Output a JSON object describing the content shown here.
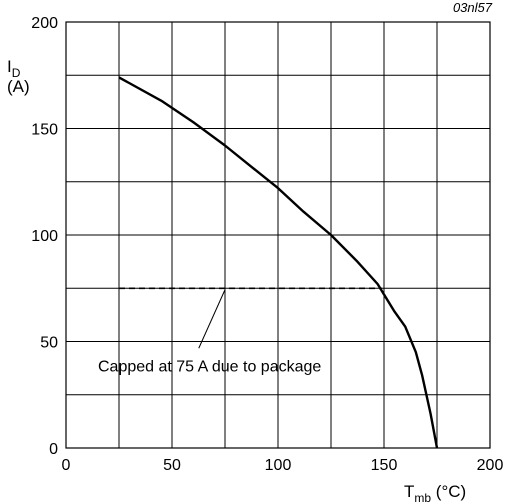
{
  "chart_data": {
    "type": "line",
    "figure_id": "03nl57",
    "ylabel_main": "I",
    "ylabel_sub": "D",
    "ylabel_unit": "(A)",
    "xlabel_main": "T",
    "xlabel_sub": "mb",
    "xlabel_unit": " (°C)",
    "xlim": [
      0,
      200
    ],
    "ylim": [
      0,
      200
    ],
    "x_ticks": [
      0,
      50,
      100,
      150,
      200
    ],
    "y_ticks": [
      0,
      50,
      100,
      150,
      200
    ],
    "grid": true,
    "series": [
      {
        "style": "solid",
        "x": [
          25,
          45,
          60,
          75,
          90,
          100,
          112,
          125,
          137,
          147,
          155,
          160,
          165,
          168,
          172,
          175
        ],
        "y": [
          174,
          163,
          153,
          142,
          130,
          122,
          111,
          100,
          88,
          77,
          64,
          57,
          45,
          34,
          16,
          0
        ]
      },
      {
        "style": "dashed",
        "x": [
          25,
          149
        ],
        "y": [
          75,
          75
        ]
      }
    ],
    "annotation": {
      "text": "Capped at 75 A due to package",
      "x": 73,
      "y": 75
    }
  }
}
